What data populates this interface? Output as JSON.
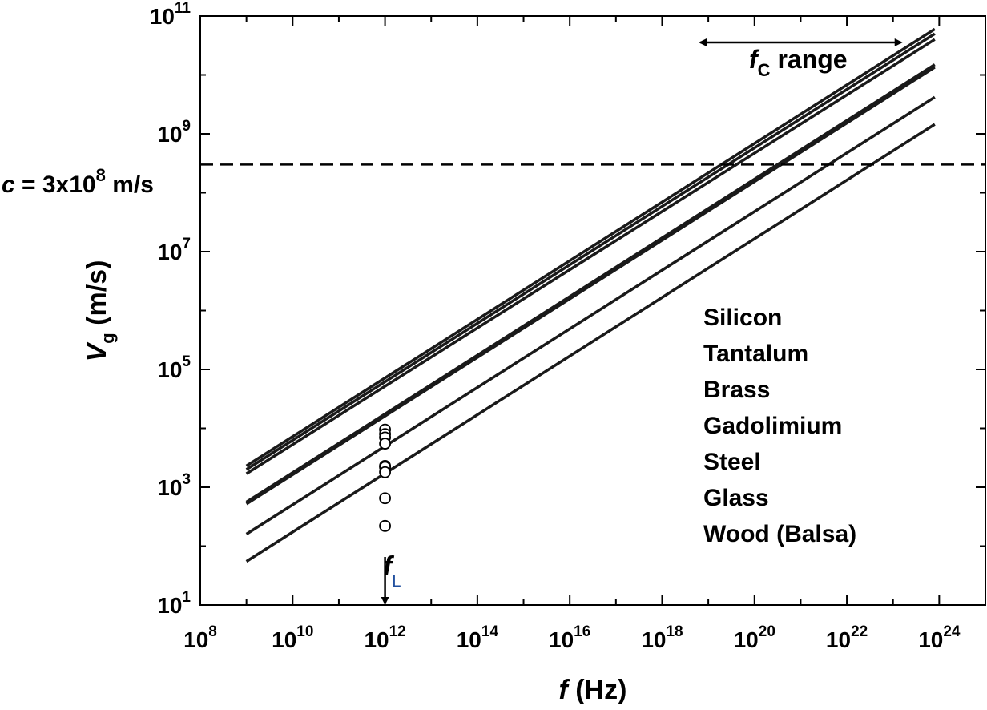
{
  "chart_data": {
    "type": "line",
    "log_x": true,
    "log_y": true,
    "xlim": [
      100000000.0,
      1e+25
    ],
    "ylim": [
      10,
      100000000000.0
    ],
    "x_ticks": [
      {
        "base": "10",
        "exp": "8",
        "value": 100000000.0
      },
      {
        "base": "10",
        "exp": "10",
        "value": 10000000000.0
      },
      {
        "base": "10",
        "exp": "12",
        "value": 1000000000000.0
      },
      {
        "base": "10",
        "exp": "14",
        "value": 100000000000000.0
      },
      {
        "base": "10",
        "exp": "16",
        "value": 1e+16
      },
      {
        "base": "10",
        "exp": "18",
        "value": 1e+18
      },
      {
        "base": "10",
        "exp": "20",
        "value": 1e+20
      },
      {
        "base": "10",
        "exp": "22",
        "value": 1e+22
      },
      {
        "base": "10",
        "exp": "24",
        "value": 1e+24
      }
    ],
    "y_ticks": [
      {
        "base": "10",
        "exp": "1",
        "value": 10
      },
      {
        "base": "10",
        "exp": "3",
        "value": 1000
      },
      {
        "base": "10",
        "exp": "5",
        "value": 100000
      },
      {
        "base": "10",
        "exp": "7",
        "value": 10000000
      },
      {
        "base": "10",
        "exp": "9",
        "value": 1000000000
      },
      {
        "base": "10",
        "exp": "11",
        "value": 100000000000
      }
    ],
    "xlabel": {
      "symbol": "f",
      "unit": " (Hz)"
    },
    "ylabel": {
      "symbol": "V",
      "sub": "g",
      "unit": " (m/s)"
    },
    "legend": [
      "Silicon",
      "Tantalum",
      "Brass",
      "Gadolimium",
      "Steel",
      "Glass",
      "Wood (Balsa)"
    ],
    "legend_position": "lower-right",
    "series": [
      {
        "x": [
          1000000000.0,
          8e+23
        ],
        "y": [
          2300,
          60000000000.0
        ]
      },
      {
        "x": [
          1000000000.0,
          8e+23
        ],
        "y": [
          2000,
          50000000000.0
        ]
      },
      {
        "x": [
          1000000000.0,
          8e+23
        ],
        "y": [
          1700,
          40000000000.0
        ]
      },
      {
        "x": [
          1000000000.0,
          8e+23
        ],
        "y": [
          560,
          15000000000.0
        ]
      },
      {
        "x": [
          1000000000.0,
          8e+23
        ],
        "y": [
          520,
          13500000000.0
        ]
      },
      {
        "x": [
          1000000000.0,
          8e+23
        ],
        "y": [
          160,
          4200000000.0
        ]
      },
      {
        "x": [
          1000000000.0,
          8e+23
        ],
        "y": [
          55,
          1450000000.0
        ]
      }
    ],
    "markers": {
      "style": "open-circle",
      "x": [
        1000000000000.0,
        1000000000000.0,
        1000000000000.0,
        1000000000000.0,
        1000000000000.0,
        1000000000000.0,
        1000000000000.0,
        1000000000000.0,
        1000000000000.0
      ],
      "y": [
        9500,
        8000,
        7000,
        5500,
        2300,
        2200,
        1800,
        650,
        220
      ]
    },
    "reference_line": {
      "y": 300000000.0,
      "style": "dashed",
      "label": {
        "prefix": "c",
        "text": " = 3x10",
        "exp": "8",
        "unit": " m/s"
      }
    },
    "annotations": {
      "fc_range": {
        "symbol": "f",
        "sub": "C",
        "text": " range",
        "x_from": 1e+19,
        "x_to": 1e+23,
        "y": 15000000000.0
      },
      "fL": {
        "symbol": "f",
        "sub": "L",
        "x": 1000000000000.0,
        "y_from": 70,
        "y_to": 10
      }
    }
  }
}
